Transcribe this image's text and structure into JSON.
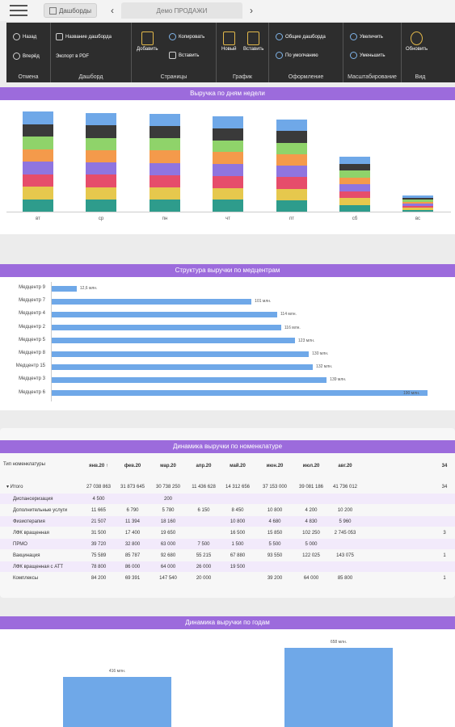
{
  "topbar": {
    "dash_label": "Дашборды",
    "title": "Демо ПРОДАЖИ",
    "prev": "‹",
    "next": "›"
  },
  "ribbon": {
    "groups": [
      {
        "label": "Отмена",
        "items": [
          "Назад",
          "Вперёд"
        ]
      },
      {
        "label": "Дашборд",
        "items": [
          "Название дашборда",
          "Экспорт в PDF"
        ]
      },
      {
        "label": "Страницы",
        "items": [
          "Добавить",
          "Копировать",
          "Вставить"
        ]
      },
      {
        "label": "График",
        "items": [
          "Новый",
          "Вставить"
        ]
      },
      {
        "label": "Оформление",
        "items": [
          "Общие дашборда",
          "По умолчанию"
        ]
      },
      {
        "label": "Масштабирование",
        "items": [
          "Увеличить",
          "Уменьшить"
        ]
      },
      {
        "label": "Вид",
        "items": [
          "Обновить"
        ]
      }
    ]
  },
  "section1": {
    "title": "Выручка по дням недели"
  },
  "weekday_chart": {
    "days": [
      "вт",
      "ср",
      "пн",
      "чт",
      "пт",
      "сб",
      "вс"
    ],
    "colors": [
      "#2e9c8c",
      "#e6c84d",
      "#e64d6b",
      "#8f75e0",
      "#f49a4b",
      "#8fd36a",
      "#3a3a3a",
      "#6fa8e8"
    ]
  },
  "section2": {
    "title": "Структура выручки по медцентрам"
  },
  "centers": [
    {
      "name": "Медцентр 9",
      "value": 12.6,
      "label": "12,6 млн."
    },
    {
      "name": "Медцентр 7",
      "value": 101,
      "label": "101 млн."
    },
    {
      "name": "Медцентр 4",
      "value": 114,
      "label": "114 млн."
    },
    {
      "name": "Медцентр 2",
      "value": 116,
      "label": "116 млн."
    },
    {
      "name": "Медцентр 5",
      "value": 123,
      "label": "123 млн."
    },
    {
      "name": "Медцентр 8",
      "value": 130,
      "label": "130 млн."
    },
    {
      "name": "Медцентр 15",
      "value": 132,
      "label": "132 млн."
    },
    {
      "name": "Медцентр 3",
      "value": 139,
      "label": "139 млн."
    },
    {
      "name": "Медцентр 6",
      "value": 190,
      "label": "190 млн."
    }
  ],
  "section3": {
    "title": "Динамика выручки по номенклатуре"
  },
  "table": {
    "header_first": "Тип номенклатуры",
    "months": [
      "янв.20 ↑",
      "фев.20",
      "мар.20",
      "апр.20",
      "май.20",
      "июн.20",
      "июл.20",
      "авг.20",
      "34"
    ],
    "total_label": "Итого",
    "total_values": [
      "27 038 863",
      "31 873 645",
      "30 738 250",
      "11 436 628",
      "14 312 656",
      "37 153 000",
      "39 081 186",
      "41 736 012",
      "34"
    ],
    "rows": [
      {
        "name": "Диспансеризация",
        "values": [
          "4 500",
          "",
          "200",
          "",
          "",
          "",
          "",
          "",
          ""
        ]
      },
      {
        "name": "Дополнительные услуги",
        "values": [
          "11 665",
          "6 790",
          "5 780",
          "6 150",
          "8 450",
          "10 800",
          "4 200",
          "10 200",
          ""
        ]
      },
      {
        "name": "Физиотерапия",
        "values": [
          "21 507",
          "11 394",
          "18 160",
          "",
          "10 800",
          "4 680",
          "4 830",
          "5 960",
          ""
        ]
      },
      {
        "name": "ЛФК вращенная",
        "values": [
          "31 500",
          "17 400",
          "19 650",
          "",
          "16 500",
          "15 850",
          "102 250",
          "2 745 053",
          "3"
        ]
      },
      {
        "name": "ПРМО",
        "values": [
          "39 720",
          "32 800",
          "63 000",
          "7 500",
          "1 500",
          "5 500",
          "5 000",
          "",
          ""
        ]
      },
      {
        "name": "Вакцинация",
        "values": [
          "75 589",
          "85 787",
          "92 680",
          "55 215",
          "67 880",
          "93 550",
          "122 025",
          "143 075",
          "1"
        ]
      },
      {
        "name": "ЛФК вращенная с АТТ",
        "values": [
          "78 800",
          "86 000",
          "64 000",
          "26 000",
          "19 500",
          "",
          "",
          "",
          ""
        ]
      },
      {
        "name": "Комплексы",
        "values": [
          "84 200",
          "69 391",
          "147 540",
          "20 000",
          "",
          "39 200",
          "64 000",
          "85 800",
          "1"
        ]
      }
    ]
  },
  "section4": {
    "title": "Динамика выручки по годам"
  },
  "years_chart": {
    "values": [
      416,
      658
    ],
    "labels": [
      "416 млн.",
      "658 млн."
    ]
  }
}
